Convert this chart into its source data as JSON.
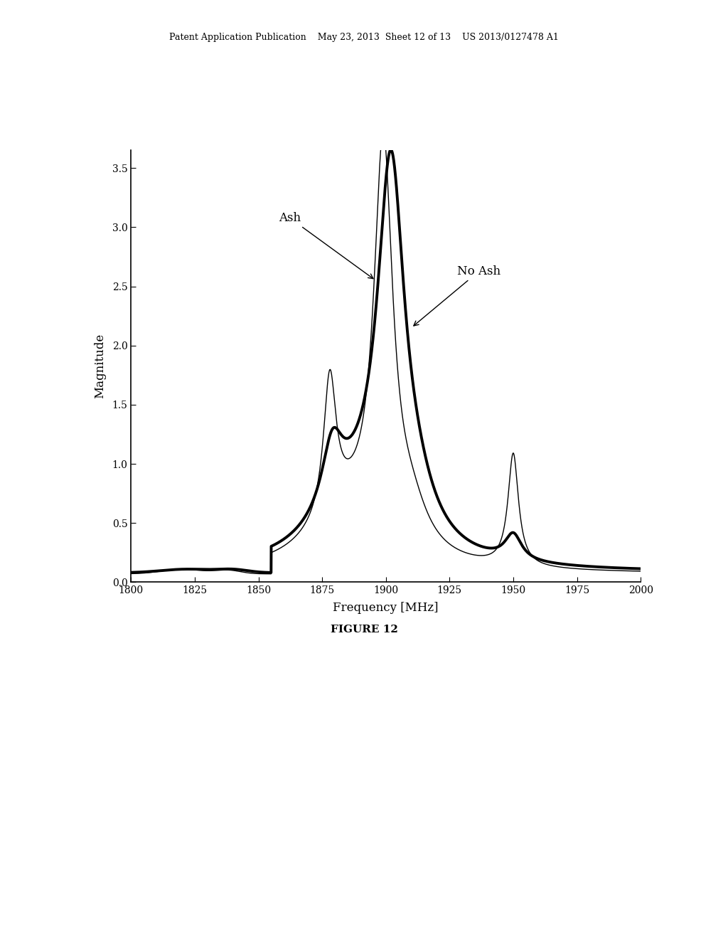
{
  "title_header": "Patent Application Publication    May 23, 2013  Sheet 12 of 13    US 2013/0127478 A1",
  "xlabel": "Frequency [MHz]",
  "ylabel": "Magnitude",
  "figure_caption": "FIGURE 12",
  "xlim": [
    1800,
    2000
  ],
  "ylim": [
    0.0,
    3.65
  ],
  "xticks": [
    1800,
    1825,
    1850,
    1875,
    1900,
    1925,
    1950,
    1975,
    2000
  ],
  "yticks": [
    0.0,
    0.5,
    1.0,
    1.5,
    2.0,
    2.5,
    3.0,
    3.5
  ],
  "background_color": "#ffffff",
  "line_thin_color": "#000000",
  "line_thick_color": "#000000",
  "annotation_ash": "Ash",
  "annotation_noash": "No Ash"
}
